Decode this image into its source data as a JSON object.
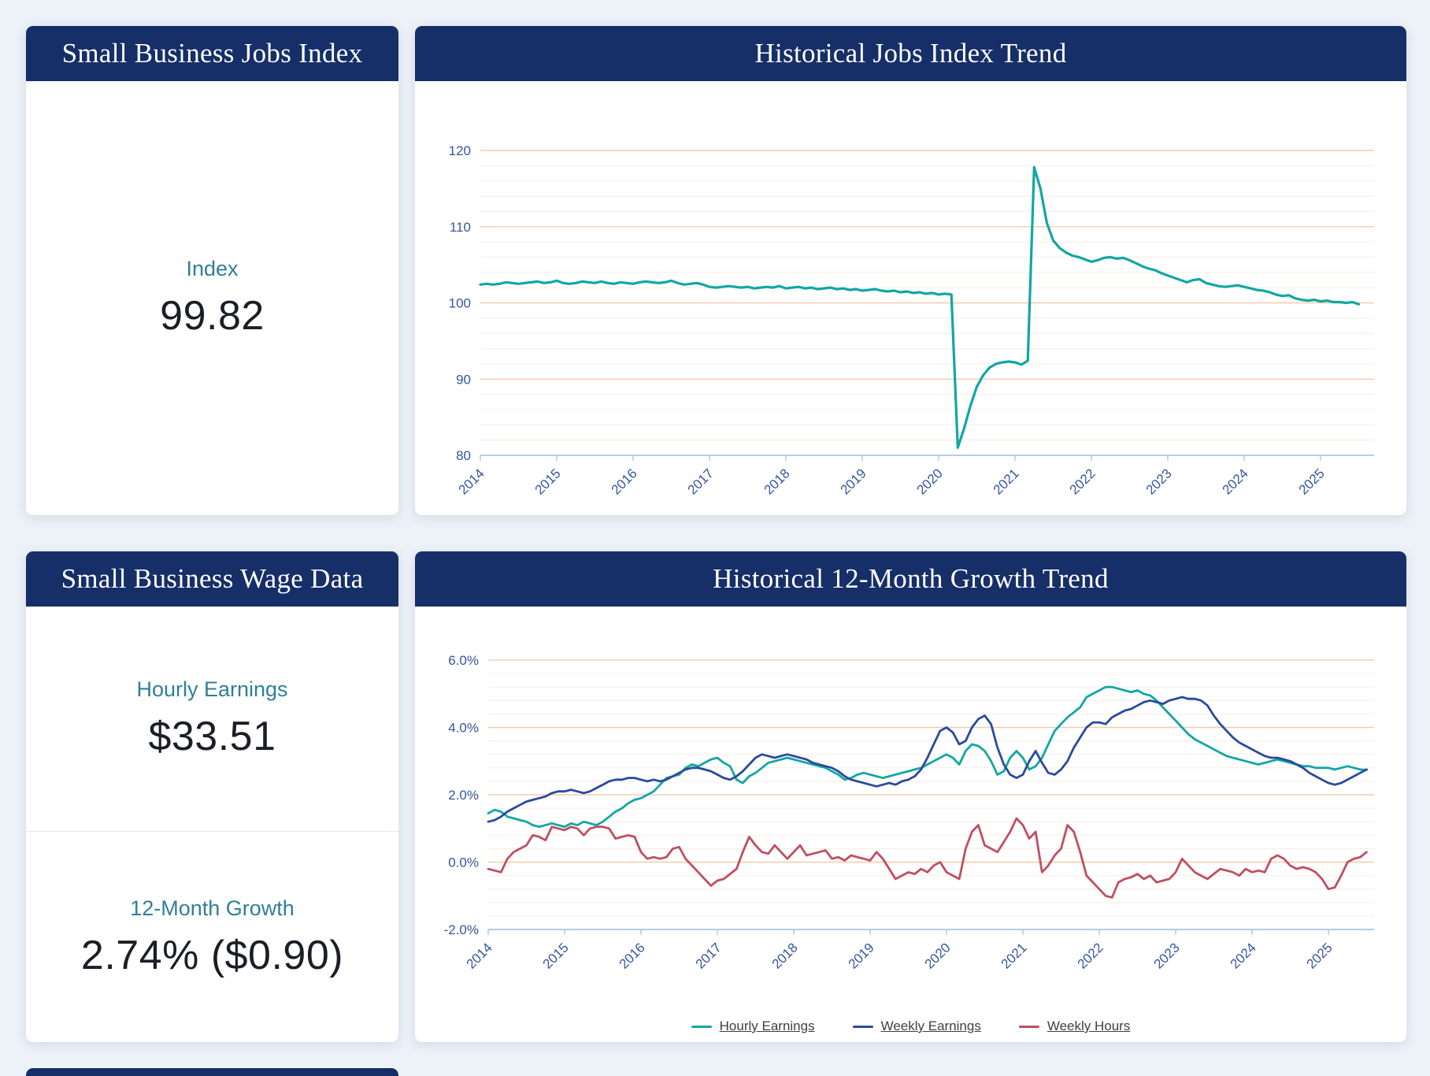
{
  "page": {
    "background": "#edf2f8"
  },
  "colors": {
    "header_navy": "#162f68",
    "teal_line": "#11a7a3",
    "navy_line": "#2a4a9d",
    "red_line": "#bf4f62",
    "grid_major": "#f6cbb0",
    "grid_minor": "#fcebe0",
    "axis_line": "#b7cbe8",
    "axis_label": "#35569d",
    "metric_label_teal": "#2f7f9a",
    "metric_value_dark": "#1a1e26"
  },
  "cards": {
    "jobs_index": {
      "title": "Small Business Jobs Index",
      "metric_label": "Index",
      "metric_value": "99.82"
    },
    "jobs_trend": {
      "title": "Historical Jobs Index Trend"
    },
    "wage_data": {
      "title": "Small Business Wage Data",
      "sections": [
        {
          "label": "Hourly Earnings",
          "value": "$33.51"
        },
        {
          "label": "12-Month Growth",
          "value": "2.74% ($0.90)"
        }
      ]
    },
    "growth_trend": {
      "title": "Historical 12-Month Growth Trend"
    }
  },
  "chart_data": [
    {
      "type": "line",
      "title": "Historical Jobs Index Trend",
      "x_tick_labels": [
        "2014",
        "2015",
        "2016",
        "2017",
        "2018",
        "2019",
        "2020",
        "2021",
        "2022",
        "2023",
        "2024",
        "2025"
      ],
      "points_per_year": 12,
      "xlabel": "",
      "ylabel": "",
      "ylim": [
        80,
        120
      ],
      "y_ticks": [
        80,
        90,
        100,
        110,
        120
      ],
      "y_tick_labels": [
        "80",
        "90",
        "100",
        "110",
        "120"
      ],
      "y_minor_step": 2,
      "grid": true,
      "legend_position": "none",
      "series": [
        {
          "name": "Jobs Index",
          "color": "#11a7a3",
          "values": [
            102.4,
            102.5,
            102.4,
            102.5,
            102.7,
            102.6,
            102.5,
            102.6,
            102.7,
            102.8,
            102.6,
            102.7,
            102.9,
            102.6,
            102.5,
            102.6,
            102.8,
            102.7,
            102.6,
            102.8,
            102.6,
            102.5,
            102.7,
            102.6,
            102.5,
            102.7,
            102.8,
            102.7,
            102.6,
            102.7,
            102.9,
            102.6,
            102.4,
            102.5,
            102.6,
            102.4,
            102.1,
            102.0,
            102.1,
            102.2,
            102.1,
            102.0,
            102.1,
            101.9,
            102.0,
            102.1,
            102.0,
            102.2,
            101.9,
            102.0,
            102.1,
            101.9,
            102.0,
            101.8,
            101.9,
            102.0,
            101.8,
            101.9,
            101.7,
            101.8,
            101.6,
            101.7,
            101.8,
            101.6,
            101.5,
            101.6,
            101.4,
            101.5,
            101.3,
            101.4,
            101.2,
            101.3,
            101.1,
            101.2,
            101.1,
            81.0,
            83.5,
            86.5,
            89.0,
            90.5,
            91.5,
            92.0,
            92.2,
            92.3,
            92.2,
            91.9,
            92.4,
            117.8,
            115.0,
            110.5,
            108.2,
            107.2,
            106.6,
            106.2,
            106.0,
            105.7,
            105.4,
            105.6,
            105.9,
            106.0,
            105.8,
            105.9,
            105.6,
            105.2,
            104.8,
            104.5,
            104.3,
            103.9,
            103.6,
            103.3,
            103.0,
            102.7,
            103.0,
            103.1,
            102.6,
            102.4,
            102.2,
            102.1,
            102.2,
            102.3,
            102.1,
            101.9,
            101.7,
            101.6,
            101.4,
            101.1,
            100.9,
            101.0,
            100.6,
            100.4,
            100.3,
            100.4,
            100.2,
            100.3,
            100.1,
            100.1,
            100.0,
            100.1,
            99.82
          ]
        }
      ]
    },
    {
      "type": "line",
      "title": "Historical 12-Month Growth Trend",
      "x_tick_labels": [
        "2014",
        "2015",
        "2016",
        "2017",
        "2018",
        "2019",
        "2020",
        "2021",
        "2022",
        "2023",
        "2024",
        "2025"
      ],
      "points_per_year": 12,
      "xlabel": "",
      "ylabel": "",
      "ylim": [
        -2,
        6
      ],
      "y_ticks": [
        -2,
        0,
        2,
        4,
        6
      ],
      "y_tick_labels": [
        "-2.0%",
        "0.0%",
        "2.0%",
        "4.0%",
        "6.0%"
      ],
      "y_minor_step": 0.4,
      "grid": true,
      "legend_position": "bottom",
      "series": [
        {
          "name": "Hourly Earnings",
          "color": "#11a7a3",
          "values": [
            1.45,
            1.55,
            1.5,
            1.35,
            1.3,
            1.25,
            1.2,
            1.1,
            1.05,
            1.1,
            1.15,
            1.1,
            1.05,
            1.15,
            1.1,
            1.2,
            1.15,
            1.1,
            1.2,
            1.35,
            1.5,
            1.6,
            1.75,
            1.85,
            1.9,
            2.0,
            2.1,
            2.3,
            2.5,
            2.55,
            2.6,
            2.8,
            2.9,
            2.85,
            2.95,
            3.05,
            3.1,
            2.95,
            2.85,
            2.45,
            2.35,
            2.55,
            2.65,
            2.8,
            2.95,
            3.0,
            3.05,
            3.1,
            3.05,
            3.0,
            2.95,
            2.9,
            2.85,
            2.8,
            2.7,
            2.6,
            2.45,
            2.5,
            2.6,
            2.65,
            2.6,
            2.55,
            2.5,
            2.55,
            2.6,
            2.65,
            2.7,
            2.75,
            2.8,
            2.9,
            3.0,
            3.1,
            3.2,
            3.1,
            2.9,
            3.3,
            3.5,
            3.45,
            3.3,
            3.0,
            2.6,
            2.7,
            3.1,
            3.3,
            3.1,
            2.75,
            2.85,
            3.1,
            3.5,
            3.9,
            4.1,
            4.3,
            4.45,
            4.6,
            4.9,
            5.0,
            5.1,
            5.2,
            5.2,
            5.15,
            5.1,
            5.05,
            5.1,
            5.0,
            4.95,
            4.8,
            4.6,
            4.4,
            4.2,
            4.0,
            3.8,
            3.65,
            3.55,
            3.45,
            3.35,
            3.25,
            3.15,
            3.1,
            3.05,
            3.0,
            2.95,
            2.9,
            2.95,
            3.0,
            3.05,
            3.0,
            2.95,
            2.9,
            2.85,
            2.85,
            2.8,
            2.8,
            2.8,
            2.75,
            2.8,
            2.85,
            2.8,
            2.75,
            2.74
          ]
        },
        {
          "name": "Weekly Earnings",
          "color": "#2a4a9d",
          "values": [
            1.2,
            1.25,
            1.35,
            1.5,
            1.6,
            1.7,
            1.8,
            1.85,
            1.9,
            1.95,
            2.05,
            2.1,
            2.1,
            2.15,
            2.1,
            2.05,
            2.1,
            2.2,
            2.3,
            2.4,
            2.45,
            2.45,
            2.5,
            2.5,
            2.45,
            2.4,
            2.45,
            2.4,
            2.45,
            2.55,
            2.65,
            2.75,
            2.8,
            2.8,
            2.75,
            2.7,
            2.6,
            2.5,
            2.45,
            2.55,
            2.7,
            2.9,
            3.1,
            3.2,
            3.15,
            3.1,
            3.15,
            3.2,
            3.15,
            3.1,
            3.05,
            2.95,
            2.9,
            2.85,
            2.8,
            2.7,
            2.55,
            2.45,
            2.4,
            2.35,
            2.3,
            2.25,
            2.3,
            2.35,
            2.3,
            2.4,
            2.45,
            2.55,
            2.75,
            3.1,
            3.5,
            3.9,
            4.0,
            3.85,
            3.5,
            3.6,
            4.0,
            4.25,
            4.35,
            4.1,
            3.4,
            2.9,
            2.6,
            2.5,
            2.6,
            3.0,
            3.3,
            2.95,
            2.65,
            2.6,
            2.75,
            3.0,
            3.4,
            3.7,
            4.0,
            4.15,
            4.15,
            4.1,
            4.3,
            4.4,
            4.5,
            4.55,
            4.65,
            4.75,
            4.8,
            4.75,
            4.7,
            4.8,
            4.85,
            4.9,
            4.85,
            4.85,
            4.8,
            4.65,
            4.35,
            4.1,
            3.9,
            3.7,
            3.55,
            3.45,
            3.35,
            3.25,
            3.15,
            3.1,
            3.1,
            3.05,
            3.0,
            2.9,
            2.8,
            2.65,
            2.55,
            2.45,
            2.35,
            2.3,
            2.35,
            2.45,
            2.55,
            2.65,
            2.75
          ]
        },
        {
          "name": "Weekly Hours",
          "color": "#bf4f62",
          "values": [
            -0.2,
            -0.25,
            -0.3,
            0.1,
            0.3,
            0.4,
            0.5,
            0.8,
            0.75,
            0.65,
            1.05,
            1.0,
            0.95,
            1.05,
            1.0,
            0.8,
            1.0,
            1.05,
            1.05,
            1.0,
            0.7,
            0.75,
            0.8,
            0.75,
            0.3,
            0.1,
            0.15,
            0.1,
            0.15,
            0.4,
            0.45,
            0.1,
            -0.1,
            -0.3,
            -0.5,
            -0.7,
            -0.55,
            -0.5,
            -0.35,
            -0.2,
            0.3,
            0.75,
            0.5,
            0.3,
            0.25,
            0.5,
            0.3,
            0.1,
            0.3,
            0.5,
            0.2,
            0.25,
            0.3,
            0.35,
            0.1,
            0.15,
            0.05,
            0.2,
            0.15,
            0.1,
            0.05,
            0.3,
            0.1,
            -0.2,
            -0.5,
            -0.4,
            -0.3,
            -0.35,
            -0.2,
            -0.3,
            -0.1,
            0.0,
            -0.3,
            -0.4,
            -0.5,
            0.4,
            0.9,
            1.1,
            0.5,
            0.4,
            0.3,
            0.6,
            0.9,
            1.3,
            1.1,
            0.7,
            0.9,
            -0.3,
            -0.1,
            0.2,
            0.4,
            1.1,
            0.9,
            0.3,
            -0.4,
            -0.6,
            -0.8,
            -1.0,
            -1.05,
            -0.6,
            -0.5,
            -0.45,
            -0.35,
            -0.5,
            -0.4,
            -0.6,
            -0.55,
            -0.5,
            -0.3,
            0.1,
            -0.1,
            -0.3,
            -0.4,
            -0.5,
            -0.35,
            -0.2,
            -0.25,
            -0.3,
            -0.4,
            -0.2,
            -0.3,
            -0.25,
            -0.3,
            0.1,
            0.2,
            0.1,
            -0.1,
            -0.2,
            -0.15,
            -0.2,
            -0.3,
            -0.5,
            -0.8,
            -0.75,
            -0.4,
            0.0,
            0.1,
            0.15,
            0.3
          ]
        }
      ]
    }
  ]
}
